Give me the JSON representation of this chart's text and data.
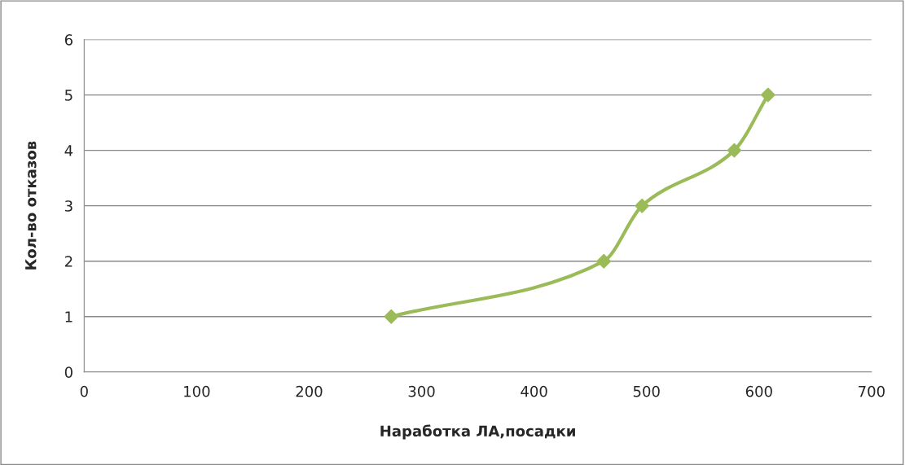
{
  "chart_data": {
    "type": "line",
    "xlabel": "Наработка ЛА,посадки",
    "ylabel": "Кол-во отказов",
    "x": [
      273,
      462,
      496,
      578,
      608
    ],
    "series": [
      {
        "color": "#9bbb59",
        "values": [
          1,
          2,
          3,
          4,
          5
        ]
      }
    ],
    "xlim": [
      0,
      700
    ],
    "xticks": [
      0,
      100,
      200,
      300,
      400,
      500,
      600,
      700
    ],
    "ylim": [
      0,
      6
    ],
    "yticks": [
      0,
      1,
      2,
      3,
      4,
      5,
      6
    ],
    "grid": "y",
    "marker": "diamond",
    "line_style": "solid",
    "legend": false
  }
}
